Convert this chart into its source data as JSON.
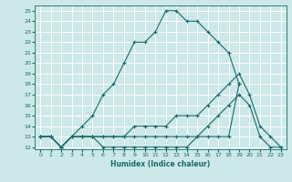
{
  "xlabel": "Humidex (Indice chaleur)",
  "xlim": [
    -0.5,
    23.5
  ],
  "ylim": [
    11.8,
    25.5
  ],
  "xticks": [
    0,
    1,
    2,
    3,
    4,
    5,
    6,
    7,
    8,
    9,
    10,
    11,
    12,
    13,
    14,
    15,
    16,
    17,
    18,
    19,
    20,
    21,
    22,
    23
  ],
  "yticks": [
    12,
    13,
    14,
    15,
    16,
    17,
    18,
    19,
    20,
    21,
    22,
    23,
    24,
    25
  ],
  "bg_color": "#cce8e8",
  "grid_color": "#ffffff",
  "line_color": "#1a6b6b",
  "lines": [
    {
      "x": [
        0,
        1,
        2,
        3,
        4,
        5,
        6,
        7,
        8,
        9,
        10,
        11,
        12,
        13,
        14,
        15,
        16,
        17,
        18,
        19,
        20,
        21,
        22,
        23
      ],
      "y": [
        13,
        13,
        12,
        13,
        14,
        15,
        17,
        18,
        20,
        22,
        22,
        23,
        25,
        25,
        24,
        24,
        23,
        22,
        21,
        18,
        null,
        null,
        null,
        null
      ]
    },
    {
      "x": [
        0,
        1,
        2,
        3,
        4,
        5,
        6,
        7,
        8,
        9,
        10,
        11,
        12,
        13,
        14,
        15,
        16,
        17,
        18,
        19,
        20,
        21,
        22,
        23
      ],
      "y": [
        13,
        13,
        12,
        13,
        13,
        13,
        13,
        13,
        13,
        13,
        13,
        13,
        13,
        13,
        13,
        13,
        13,
        13,
        13,
        18,
        null,
        null,
        null,
        null
      ]
    },
    {
      "x": [
        0,
        1,
        2,
        3,
        4,
        5,
        6,
        7,
        8,
        9,
        10,
        11,
        12,
        13,
        14,
        15,
        16,
        17,
        18,
        19,
        20,
        21,
        22,
        23
      ],
      "y": [
        13,
        13,
        12,
        13,
        13,
        13,
        13,
        13,
        13,
        14,
        14,
        14,
        14,
        15,
        15,
        15,
        16,
        17,
        18,
        19,
        17,
        14,
        13,
        12
      ]
    },
    {
      "x": [
        0,
        1,
        2,
        3,
        4,
        5,
        6,
        7,
        8,
        9,
        10,
        11,
        12,
        13,
        14,
        15,
        16,
        17,
        18,
        19,
        20,
        21,
        22,
        23
      ],
      "y": [
        13,
        13,
        12,
        13,
        13,
        13,
        12,
        12,
        12,
        12,
        12,
        12,
        12,
        12,
        12,
        13,
        14,
        15,
        16,
        17,
        16,
        13,
        12,
        12
      ]
    }
  ]
}
